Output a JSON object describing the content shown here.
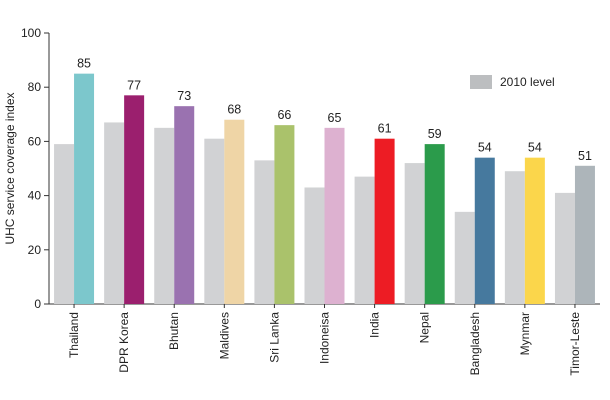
{
  "chart_data": {
    "type": "bar",
    "ylabel": "UHC service coverage index",
    "ylim": [
      0,
      100
    ],
    "yticks": [
      0,
      20,
      40,
      60,
      80,
      100
    ],
    "grid": false,
    "legend_position": "top-right",
    "categories": [
      "Thailand",
      "DPR Korea",
      "Bhutan",
      "Maldives",
      "Sri Lanka",
      "Indoneisa",
      "India",
      "Nepal",
      "Bangladesh",
      "Mynmar",
      "Timor-Leste"
    ],
    "series": [
      {
        "name": "2010 level",
        "color": "#d1d2d4",
        "values": [
          59,
          67,
          65,
          61,
          53,
          43,
          47,
          52,
          34,
          49,
          41
        ]
      },
      {
        "colors": [
          "#7cc7cc",
          "#9b1f6e",
          "#9a72b0",
          "#efd5a6",
          "#aac26b",
          "#ddb1d0",
          "#ed1c24",
          "#2b9b4b",
          "#46799e",
          "#fbd64b",
          "#adb5ba"
        ],
        "values": [
          85,
          77,
          73,
          68,
          66,
          65,
          61,
          59,
          54,
          54,
          51
        ],
        "data_labels": [
          "85",
          "77",
          "73",
          "68",
          "66",
          "65",
          "61",
          "59",
          "54",
          "54",
          "51"
        ]
      }
    ],
    "legend_label": "2010 level",
    "legend_color": "#bcbec0"
  }
}
